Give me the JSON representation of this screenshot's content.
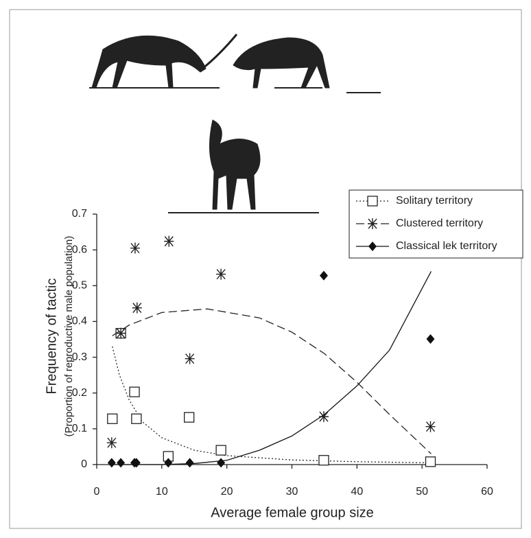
{
  "chart_data": {
    "type": "scatter",
    "x_label": "Average female group size",
    "y_label": [
      "Frequency of tactic",
      "(Proportion of reproductive male population)"
    ],
    "xlim": [
      0,
      60
    ],
    "xticks": [
      0,
      10,
      20,
      30,
      40,
      50,
      60
    ],
    "ylim": [
      0,
      0.7
    ],
    "yticks": [
      0,
      0.1,
      0.2,
      0.3,
      0.4,
      0.5,
      0.6,
      0.7
    ],
    "legend": "top-right",
    "series": [
      {
        "name": "Solitary territory",
        "marker": "square",
        "line_style": "dotted",
        "color": "#222",
        "x": [
          2.4,
          3.7,
          5.8,
          6.1,
          11.0,
          14.2,
          19.1,
          34.9,
          51.3
        ],
        "values": [
          0.128,
          0.367,
          0.203,
          0.128,
          0.023,
          0.132,
          0.04,
          0.012,
          0.008
        ],
        "curve": {
          "x": [
            2.4,
            3.5,
            5,
            7,
            10,
            15,
            20,
            30,
            40,
            51.4
          ],
          "y": [
            0.33,
            0.25,
            0.18,
            0.12,
            0.075,
            0.04,
            0.025,
            0.013,
            0.008,
            0.005
          ]
        }
      },
      {
        "name": "Clustered territory",
        "marker": "asterisk",
        "line_style": "dashed",
        "color": "#222",
        "x": [
          2.3,
          3.7,
          5.9,
          6.2,
          11.1,
          14.3,
          19.1,
          34.9,
          51.3
        ],
        "values": [
          0.061,
          0.367,
          0.605,
          0.438,
          0.624,
          0.296,
          0.532,
          0.134,
          0.106
        ],
        "curve": {
          "x": [
            2.4,
            5,
            10,
            17,
            25,
            30,
            35,
            40,
            45,
            51.4
          ],
          "y": [
            0.36,
            0.39,
            0.425,
            0.435,
            0.41,
            0.37,
            0.31,
            0.23,
            0.14,
            0.03
          ]
        }
      },
      {
        "name": "Classical lek territory",
        "marker": "diamond",
        "line_style": "solid",
        "color": "#111",
        "x": [
          2.3,
          3.7,
          5.8,
          6.1,
          11.0,
          14.3,
          19.1,
          34.9,
          51.3
        ],
        "values": [
          0.005,
          0.005,
          0.005,
          0.005,
          0.005,
          0.005,
          0.005,
          0.528,
          0.351
        ],
        "curve": {
          "x": [
            2.4,
            10,
            15,
            20,
            25,
            30,
            35,
            40,
            45,
            51.4
          ],
          "y": [
            0,
            0.0,
            0.003,
            0.012,
            0.04,
            0.08,
            0.14,
            0.22,
            0.32,
            0.54
          ]
        }
      }
    ]
  }
}
